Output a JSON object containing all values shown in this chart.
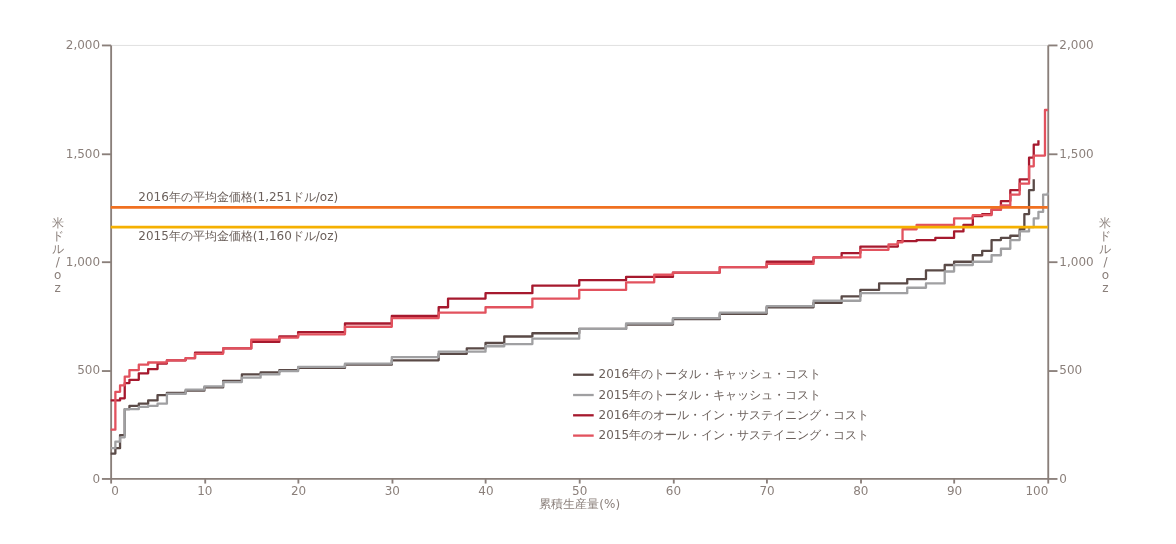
{
  "chart_data": {
    "type": "step",
    "xlabel": "累積生産量(%)",
    "ylabel": "米ドル/oz",
    "y2label": "米ドル/oz",
    "xlim": [
      0,
      100
    ],
    "xticks": [
      0,
      10,
      20,
      30,
      40,
      50,
      60,
      70,
      80,
      90,
      100
    ],
    "ylim": [
      0,
      2000
    ],
    "yticks": [
      {
        "value": 0,
        "label": "0"
      },
      {
        "value": 500,
        "label": "500"
      },
      {
        "value": 1000,
        "label": "1,000"
      },
      {
        "value": 1500,
        "label": "1,500"
      },
      {
        "value": 2000,
        "label": "2,000"
      }
    ],
    "y2lim": [
      0,
      2000
    ],
    "y2ticks": [
      {
        "value": 0,
        "label": "0"
      },
      {
        "value": 500,
        "label": "500"
      },
      {
        "value": 1000,
        "label": "1,000"
      },
      {
        "value": 1500,
        "label": "1,500"
      },
      {
        "value": 2000,
        "label": "2,000"
      }
    ],
    "grid": false,
    "legend": "bottom",
    "line_style": "solid",
    "marker": "none",
    "ref_lines": [
      {
        "axis": "y",
        "value": 1251,
        "label": "2016年の平均金価格(1,251ドル/oz)",
        "color": "#f07020"
      },
      {
        "axis": "y",
        "value": 1160,
        "label": "2015年の平均金価格(1,160ドル/oz)",
        "color": "#f5b000"
      }
    ],
    "series": [
      {
        "name": "2016年のトータル・キャッシュ・コスト",
        "color": "#5a4a47",
        "x": [
          0,
          0.5,
          1,
          1.5,
          2,
          3,
          4,
          5,
          6,
          8,
          10,
          12,
          14,
          16,
          18,
          20,
          25,
          30,
          35,
          38,
          40,
          42,
          45,
          50,
          55,
          60,
          65,
          70,
          75,
          78,
          80,
          82,
          85,
          87,
          89,
          90,
          92,
          93,
          94,
          95,
          96,
          97,
          97.5,
          98,
          98.5
        ],
        "values": [
          115,
          140,
          200,
          320,
          335,
          345,
          360,
          385,
          395,
          405,
          420,
          450,
          480,
          490,
          500,
          510,
          525,
          545,
          575,
          600,
          625,
          655,
          670,
          690,
          710,
          735,
          760,
          790,
          810,
          840,
          870,
          900,
          920,
          960,
          985,
          1000,
          1030,
          1050,
          1100,
          1110,
          1120,
          1150,
          1220,
          1330,
          1380
        ]
      },
      {
        "name": "2015年のトータル・キャッシュ・コスト",
        "color": "#a0a0a2",
        "x": [
          0,
          0.5,
          1,
          1.5,
          3,
          4,
          5,
          6,
          8,
          10,
          12,
          14,
          16,
          18,
          20,
          25,
          30,
          35,
          40,
          42,
          45,
          50,
          55,
          60,
          65,
          70,
          75,
          80,
          85,
          87,
          89,
          90,
          92,
          94,
          95,
          96,
          97,
          98,
          98.5,
          99,
          99.5,
          100
        ],
        "values": [
          140,
          170,
          190,
          320,
          330,
          335,
          345,
          390,
          410,
          425,
          445,
          465,
          480,
          495,
          515,
          530,
          560,
          585,
          610,
          620,
          645,
          690,
          715,
          740,
          765,
          795,
          820,
          855,
          880,
          900,
          955,
          985,
          1000,
          1030,
          1060,
          1100,
          1140,
          1160,
          1200,
          1230,
          1310,
          1320
        ]
      },
      {
        "name": "2016年のオール・イン・サステイニング・コスト",
        "color": "#a6192e",
        "x": [
          0,
          1,
          1.5,
          2,
          3,
          4,
          5,
          6,
          8,
          9,
          12,
          15,
          18,
          20,
          25,
          30,
          35,
          36,
          40,
          45,
          50,
          55,
          60,
          65,
          70,
          75,
          78,
          80,
          84,
          86,
          88,
          90,
          91,
          92,
          93,
          94,
          95,
          96,
          97,
          98,
          98.5,
          99
        ],
        "values": [
          360,
          370,
          440,
          455,
          485,
          505,
          530,
          545,
          555,
          580,
          600,
          630,
          655,
          675,
          715,
          750,
          790,
          830,
          855,
          890,
          915,
          930,
          950,
          975,
          1000,
          1020,
          1040,
          1070,
          1095,
          1100,
          1110,
          1140,
          1170,
          1210,
          1220,
          1240,
          1280,
          1330,
          1380,
          1480,
          1540,
          1560
        ]
      },
      {
        "name": "2015年のオール・イン・サステイニング・コスト",
        "color": "#e2525e",
        "x": [
          0,
          0.5,
          1,
          1.5,
          2,
          3,
          4,
          6,
          8,
          9,
          12,
          15,
          18,
          20,
          25,
          30,
          35,
          40,
          45,
          50,
          55,
          58,
          60,
          65,
          70,
          75,
          80,
          83,
          84,
          84.5,
          86,
          90,
          92,
          94,
          95,
          96,
          97,
          98,
          98.5,
          99.5,
          99.7,
          100
        ],
        "values": [
          225,
          400,
          430,
          470,
          500,
          525,
          535,
          545,
          555,
          575,
          600,
          640,
          650,
          665,
          700,
          740,
          765,
          790,
          830,
          870,
          905,
          940,
          950,
          975,
          990,
          1020,
          1055,
          1080,
          1090,
          1150,
          1170,
          1200,
          1215,
          1240,
          1260,
          1310,
          1360,
          1440,
          1490,
          1490,
          1700,
          1700
        ]
      }
    ]
  }
}
